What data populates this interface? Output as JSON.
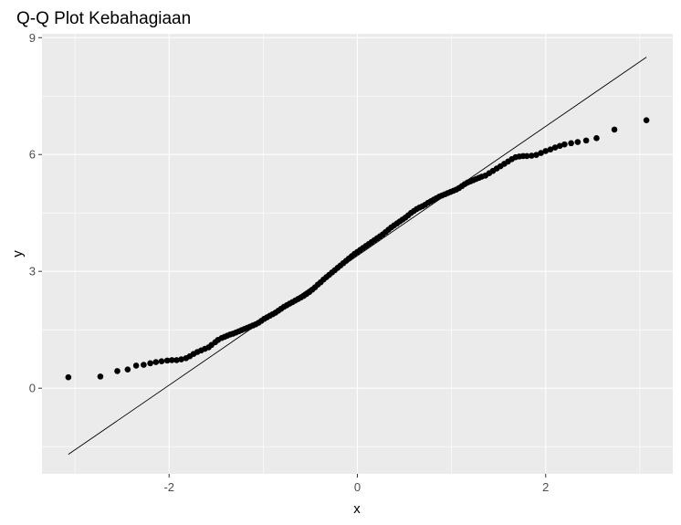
{
  "chart_data": {
    "type": "scatter",
    "title": "Q-Q Plot Kebahagiaan",
    "xlabel": "x",
    "ylabel": "y",
    "xlim": [
      -3.35,
      3.35
    ],
    "ylim": [
      -2.2,
      9.1
    ],
    "x_ticks": [
      -2,
      0,
      2
    ],
    "x_tick_labels": [
      "-2",
      "0",
      "2"
    ],
    "y_ticks": [
      0,
      3,
      6,
      9
    ],
    "y_tick_labels": [
      "0",
      "3",
      "6",
      "9"
    ],
    "grid": true,
    "background": "#ebebeb",
    "grid_color": "#ffffff",
    "point_color": "#000000",
    "reference_line": {
      "x": [
        -3.07,
        3.07
      ],
      "y": [
        -1.7,
        8.5
      ],
      "color": "#000000"
    },
    "points": [
      [
        -3.07,
        0.28
      ],
      [
        -2.73,
        0.3
      ],
      [
        -2.55,
        0.44
      ],
      [
        -2.44,
        0.48
      ],
      [
        -2.35,
        0.58
      ],
      [
        -2.27,
        0.6
      ],
      [
        -2.2,
        0.64
      ],
      [
        -2.14,
        0.67
      ],
      [
        -2.08,
        0.69
      ],
      [
        -2.02,
        0.71
      ],
      [
        -1.97,
        0.72
      ],
      [
        -1.92,
        0.72
      ],
      [
        -1.87,
        0.74
      ],
      [
        -1.82,
        0.77
      ],
      [
        -1.78,
        0.82
      ],
      [
        -1.74,
        0.88
      ],
      [
        -1.7,
        0.93
      ],
      [
        -1.66,
        0.97
      ],
      [
        -1.62,
        1.01
      ],
      [
        -1.58,
        1.05
      ],
      [
        -1.55,
        1.11
      ],
      [
        -1.51,
        1.18
      ],
      [
        -1.48,
        1.24
      ],
      [
        -1.44,
        1.29
      ],
      [
        -1.41,
        1.32
      ],
      [
        -1.38,
        1.35
      ],
      [
        -1.35,
        1.38
      ],
      [
        -1.32,
        1.4
      ],
      [
        -1.29,
        1.43
      ],
      [
        -1.26,
        1.46
      ],
      [
        -1.23,
        1.49
      ],
      [
        -1.2,
        1.52
      ],
      [
        -1.17,
        1.55
      ],
      [
        -1.14,
        1.58
      ],
      [
        -1.11,
        1.61
      ],
      [
        -1.08,
        1.64
      ],
      [
        -1.05,
        1.68
      ],
      [
        -1.02,
        1.73
      ],
      [
        -0.99,
        1.78
      ],
      [
        -0.96,
        1.82
      ],
      [
        -0.93,
        1.86
      ],
      [
        -0.9,
        1.9
      ],
      [
        -0.87,
        1.94
      ],
      [
        -0.84,
        1.99
      ],
      [
        -0.81,
        2.04
      ],
      [
        -0.78,
        2.09
      ],
      [
        -0.75,
        2.13
      ],
      [
        -0.72,
        2.17
      ],
      [
        -0.69,
        2.21
      ],
      [
        -0.66,
        2.25
      ],
      [
        -0.63,
        2.29
      ],
      [
        -0.6,
        2.33
      ],
      [
        -0.57,
        2.37
      ],
      [
        -0.54,
        2.42
      ],
      [
        -0.51,
        2.47
      ],
      [
        -0.48,
        2.53
      ],
      [
        -0.45,
        2.59
      ],
      [
        -0.42,
        2.66
      ],
      [
        -0.39,
        2.72
      ],
      [
        -0.36,
        2.79
      ],
      [
        -0.33,
        2.85
      ],
      [
        -0.3,
        2.91
      ],
      [
        -0.27,
        2.97
      ],
      [
        -0.24,
        3.03
      ],
      [
        -0.21,
        3.09
      ],
      [
        -0.18,
        3.15
      ],
      [
        -0.15,
        3.21
      ],
      [
        -0.12,
        3.27
      ],
      [
        -0.09,
        3.33
      ],
      [
        -0.06,
        3.39
      ],
      [
        -0.03,
        3.45
      ],
      [
        0.0,
        3.5
      ],
      [
        0.03,
        3.55
      ],
      [
        0.06,
        3.6
      ],
      [
        0.09,
        3.65
      ],
      [
        0.12,
        3.7
      ],
      [
        0.15,
        3.75
      ],
      [
        0.18,
        3.8
      ],
      [
        0.21,
        3.85
      ],
      [
        0.24,
        3.9
      ],
      [
        0.27,
        3.95
      ],
      [
        0.3,
        4.01
      ],
      [
        0.33,
        4.07
      ],
      [
        0.36,
        4.13
      ],
      [
        0.39,
        4.18
      ],
      [
        0.42,
        4.23
      ],
      [
        0.45,
        4.28
      ],
      [
        0.48,
        4.33
      ],
      [
        0.51,
        4.38
      ],
      [
        0.54,
        4.44
      ],
      [
        0.57,
        4.5
      ],
      [
        0.6,
        4.55
      ],
      [
        0.63,
        4.6
      ],
      [
        0.66,
        4.64
      ],
      [
        0.69,
        4.67
      ],
      [
        0.72,
        4.71
      ],
      [
        0.75,
        4.76
      ],
      [
        0.78,
        4.8
      ],
      [
        0.81,
        4.84
      ],
      [
        0.84,
        4.88
      ],
      [
        0.87,
        4.92
      ],
      [
        0.9,
        4.95
      ],
      [
        0.93,
        4.98
      ],
      [
        0.96,
        5.01
      ],
      [
        0.99,
        5.04
      ],
      [
        1.02,
        5.07
      ],
      [
        1.05,
        5.1
      ],
      [
        1.08,
        5.14
      ],
      [
        1.11,
        5.19
      ],
      [
        1.14,
        5.24
      ],
      [
        1.17,
        5.28
      ],
      [
        1.2,
        5.31
      ],
      [
        1.23,
        5.34
      ],
      [
        1.26,
        5.37
      ],
      [
        1.29,
        5.4
      ],
      [
        1.32,
        5.43
      ],
      [
        1.36,
        5.46
      ],
      [
        1.4,
        5.52
      ],
      [
        1.44,
        5.58
      ],
      [
        1.48,
        5.64
      ],
      [
        1.52,
        5.7
      ],
      [
        1.56,
        5.76
      ],
      [
        1.6,
        5.82
      ],
      [
        1.64,
        5.88
      ],
      [
        1.68,
        5.93
      ],
      [
        1.72,
        5.95
      ],
      [
        1.76,
        5.96
      ],
      [
        1.8,
        5.96
      ],
      [
        1.85,
        5.97
      ],
      [
        1.9,
        5.99
      ],
      [
        1.95,
        6.04
      ],
      [
        2.0,
        6.09
      ],
      [
        2.05,
        6.13
      ],
      [
        2.1,
        6.18
      ],
      [
        2.15,
        6.22
      ],
      [
        2.2,
        6.26
      ],
      [
        2.27,
        6.29
      ],
      [
        2.34,
        6.32
      ],
      [
        2.43,
        6.36
      ],
      [
        2.54,
        6.42
      ],
      [
        2.73,
        6.64
      ],
      [
        3.07,
        6.88
      ]
    ]
  }
}
